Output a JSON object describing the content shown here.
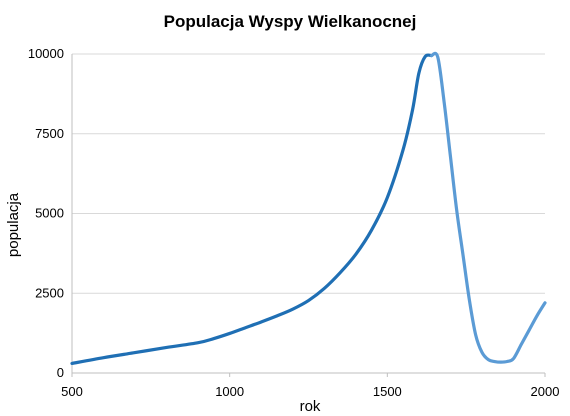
{
  "chart_data": {
    "type": "line",
    "title": "Populacja Wyspy Wielkanocnej",
    "xlabel": "rok",
    "ylabel": "populacja",
    "xlim": [
      500,
      2000
    ],
    "ylim": [
      0,
      10000
    ],
    "xticks": [
      "500",
      "1000",
      "1500",
      "2000"
    ],
    "yticks": [
      "0",
      "2500",
      "5000",
      "7500",
      "10000"
    ],
    "grid": true,
    "legend": "none",
    "series": [
      {
        "color": "#1f6fb4",
        "color_light": "#5b9bd5",
        "x": [
          500,
          600,
          700,
          800,
          900,
          950,
          1000,
          1050,
          1100,
          1150,
          1200,
          1250,
          1300,
          1350,
          1400,
          1450,
          1500,
          1550,
          1580,
          1600,
          1620,
          1640,
          1660,
          1680,
          1700,
          1720,
          1740,
          1760,
          1780,
          1800,
          1820,
          1840,
          1860,
          1880,
          1900,
          1925,
          1950,
          1975,
          2000
        ],
        "y": [
          300,
          480,
          640,
          800,
          950,
          1080,
          1240,
          1420,
          1600,
          1790,
          2000,
          2270,
          2650,
          3140,
          3720,
          4480,
          5500,
          7000,
          8250,
          9400,
          9920,
          9950,
          9900,
          8500,
          6800,
          5100,
          3700,
          2300,
          1200,
          650,
          420,
          360,
          340,
          360,
          450,
          900,
          1350,
          1800,
          2200
        ]
      }
    ]
  }
}
